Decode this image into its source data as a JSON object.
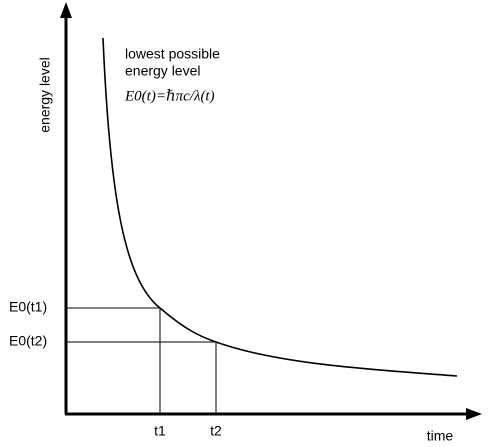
{
  "axes": {
    "y_label": "energy level",
    "x_label": "time"
  },
  "annotation": {
    "lines": [
      "lowest possible",
      "energy level"
    ],
    "formula": "E0(t)=ℏπc/λ(t)"
  },
  "markers": [
    {
      "y_label": "E0(t1)",
      "x_label": "t1"
    },
    {
      "y_label": "E0(t2)",
      "x_label": "t2"
    }
  ]
}
